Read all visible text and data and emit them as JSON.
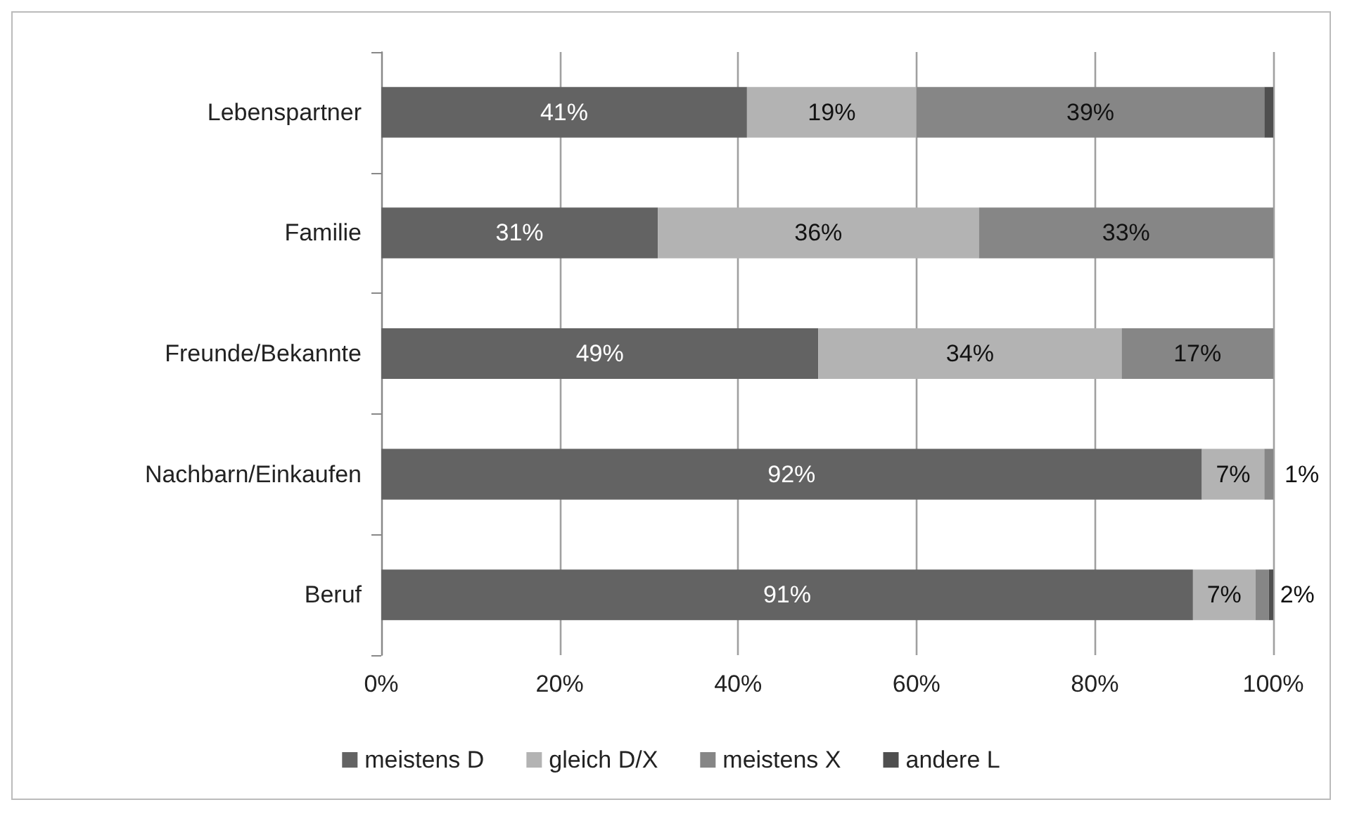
{
  "chart_data": {
    "type": "bar",
    "orientation": "horizontal",
    "stacked": true,
    "categories": [
      "Lebenspartner",
      "Familie",
      "Freunde/Bekannte",
      "Nachbarn/Einkaufen",
      "Beruf"
    ],
    "series": [
      {
        "name": "meistens D",
        "color": "#636363",
        "values": [
          41,
          31,
          49,
          92,
          91
        ],
        "value_labels": [
          "41%",
          "31%",
          "49%",
          "92%",
          "91%"
        ]
      },
      {
        "name": "gleich D/X",
        "color": "#b3b3b3",
        "values": [
          19,
          36,
          34,
          7,
          7
        ],
        "value_labels": [
          "19%",
          "36%",
          "34%",
          "7%",
          "7%"
        ]
      },
      {
        "name": "meistens X",
        "color": "#868686",
        "values": [
          39,
          33,
          17,
          1,
          1.5
        ],
        "value_labels": [
          "39%",
          "33%",
          "17%",
          "1%",
          "2%"
        ]
      },
      {
        "name": "andere L",
        "color": "#4f4f4f",
        "values": [
          1,
          0,
          0,
          0,
          0.5
        ],
        "value_labels": [
          null,
          null,
          null,
          null,
          null
        ]
      }
    ],
    "xlim": [
      0,
      100
    ],
    "xticks": [
      {
        "value": 0,
        "label": "0%"
      },
      {
        "value": 20,
        "label": "20%"
      },
      {
        "value": 40,
        "label": "40%"
      },
      {
        "value": 60,
        "label": "60%"
      },
      {
        "value": 80,
        "label": "80%"
      },
      {
        "value": 100,
        "label": "100%"
      }
    ],
    "grid": "x",
    "legend": "bottom"
  }
}
